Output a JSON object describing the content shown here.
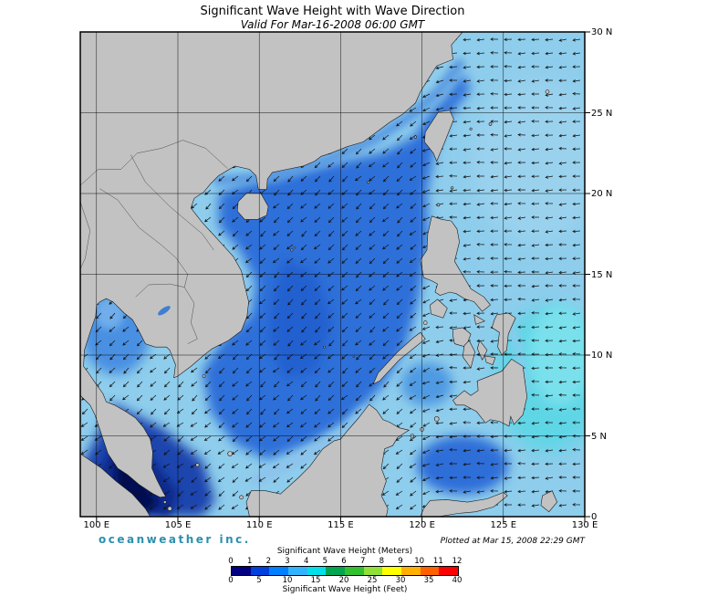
{
  "header": {
    "title": "Significant Wave Height with Wave Direction",
    "subtitle": "Valid For Mar-16-2008 06:00 GMT"
  },
  "footer": {
    "logo_text": "oceanweather inc.",
    "plotted_text": "Plotted at Mar 15, 2008 22:29 GMT"
  },
  "axes": {
    "lon_ticks": [
      {
        "deg": 100,
        "label": "100 E"
      },
      {
        "deg": 105,
        "label": "105 E"
      },
      {
        "deg": 110,
        "label": "110 E"
      },
      {
        "deg": 115,
        "label": "115 E"
      },
      {
        "deg": 120,
        "label": "120 E"
      },
      {
        "deg": 125,
        "label": "125 E"
      },
      {
        "deg": 130,
        "label": "130 E"
      }
    ],
    "lat_ticks": [
      {
        "deg": 0,
        "label": "0"
      },
      {
        "deg": 5,
        "label": "5 N"
      },
      {
        "deg": 10,
        "label": "10 N"
      },
      {
        "deg": 15,
        "label": "15 N"
      },
      {
        "deg": 20,
        "label": "20 N"
      },
      {
        "deg": 25,
        "label": "25 N"
      },
      {
        "deg": 30,
        "label": "30 N"
      }
    ]
  },
  "legend": {
    "meters_title": "Significant Wave Height (Meters)",
    "feet_title": "Significant Wave Height (Feet)",
    "meters_ticks": [
      0,
      1,
      2,
      3,
      4,
      5,
      6,
      7,
      8,
      9,
      10,
      11,
      12
    ],
    "feet_ticks": [
      0,
      5,
      10,
      15,
      20,
      25,
      30,
      35,
      40
    ],
    "colors": [
      "#000080",
      "#0040dd",
      "#0080ff",
      "#30b4ff",
      "#00e0e8",
      "#00a550",
      "#30c030",
      "#90e038",
      "#ffff00",
      "#ffb000",
      "#ff6000",
      "#ff0000"
    ]
  },
  "map": {
    "lon_min": 99,
    "lon_max": 130,
    "lat_min": 0,
    "lat_max": 30,
    "grid_step_deg": 5,
    "land_color": "#c2c2c2",
    "sea_base_color": "#8ecdec",
    "arrow_color": "#111111",
    "grid_color": "#000000"
  },
  "chart_data": {
    "type": "heatmap",
    "title": "Significant Wave Height with Wave Direction",
    "valid_time": "Mar-16-2008 06:00 GMT",
    "plotted_time": "Mar 15, 2008 22:29 GMT",
    "x_ticks": [
      "100 E",
      "105 E",
      "110 E",
      "115 E",
      "120 E",
      "125 E",
      "130 E"
    ],
    "y_ticks": [
      "0",
      "5 N",
      "10 N",
      "15 N",
      "20 N",
      "25 N",
      "30 N"
    ],
    "colorbar": {
      "meters_range": [
        0,
        12
      ],
      "feet_range": [
        0,
        40
      ],
      "colors": [
        "#000080",
        "#0040dd",
        "#0080ff",
        "#30b4ff",
        "#00e0e8",
        "#00a550",
        "#30c030",
        "#90e038",
        "#ffff00",
        "#ffb000",
        "#ff6000",
        "#ff0000"
      ]
    },
    "legend_position": "bottom"
  }
}
